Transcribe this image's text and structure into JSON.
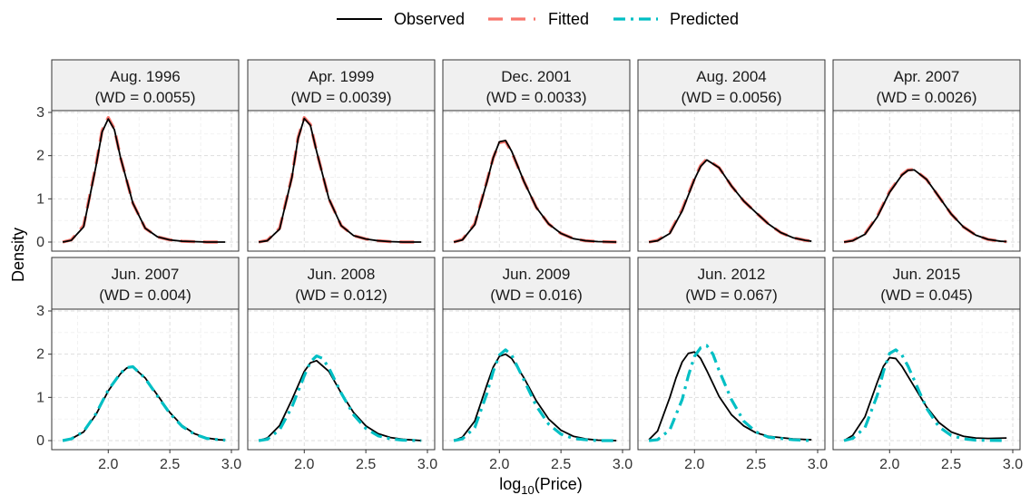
{
  "chart_data": {
    "type": "line",
    "xlabel": "log10(Price)",
    "xlabel_main": "log",
    "xlabel_sub": "10",
    "xlabel_rest": "(Price)",
    "ylabel": "Density",
    "xlim": [
      1.6,
      3.0
    ],
    "ylim": [
      0,
      3
    ],
    "x_ticks": [
      2.0,
      2.5,
      3.0
    ],
    "x_tick_labels": [
      "2.0",
      "2.5",
      "3.0"
    ],
    "y_ticks": [
      0,
      1,
      2,
      3
    ],
    "y_tick_labels": [
      "0",
      "1",
      "2",
      "3"
    ],
    "grid": true,
    "legend_position": "top",
    "legend": [
      {
        "key": "observed",
        "label": "Observed",
        "color": "#000000",
        "dash": "solid"
      },
      {
        "key": "fitted",
        "label": "Fitted",
        "color": "#F8766D",
        "dash": "dashed"
      },
      {
        "key": "predicted",
        "label": "Predicted",
        "color": "#00BFC4",
        "dash": "dotdash"
      }
    ],
    "panels": [
      {
        "title": "Aug. 1996",
        "wd": "(WD = 0.0055)",
        "compare": "fitted",
        "observed": {
          "x": [
            1.63,
            1.7,
            1.8,
            1.9,
            1.95,
            2.0,
            2.05,
            2.1,
            2.2,
            2.3,
            2.4,
            2.5,
            2.6,
            2.7,
            2.8,
            2.95
          ],
          "y": [
            0.0,
            0.04,
            0.35,
            1.75,
            2.55,
            2.85,
            2.6,
            1.95,
            0.9,
            0.32,
            0.12,
            0.05,
            0.02,
            0.01,
            0.0,
            0.0
          ]
        },
        "other": {
          "x": [
            1.63,
            1.7,
            1.8,
            1.9,
            1.95,
            2.0,
            2.05,
            2.1,
            2.2,
            2.3,
            2.4,
            2.5,
            2.6,
            2.7,
            2.8,
            2.95
          ],
          "y": [
            0.0,
            0.05,
            0.38,
            1.78,
            2.58,
            2.88,
            2.62,
            1.95,
            0.9,
            0.32,
            0.12,
            0.05,
            0.02,
            0.01,
            0.0,
            0.0
          ]
        }
      },
      {
        "title": "Apr. 1999",
        "wd": "(WD = 0.0039)",
        "compare": "fitted",
        "observed": {
          "x": [
            1.63,
            1.7,
            1.8,
            1.9,
            1.95,
            2.0,
            2.05,
            2.1,
            2.2,
            2.3,
            2.4,
            2.5,
            2.6,
            2.7,
            2.8,
            2.95
          ],
          "y": [
            0.0,
            0.03,
            0.3,
            1.5,
            2.4,
            2.86,
            2.7,
            2.1,
            1.0,
            0.38,
            0.15,
            0.07,
            0.03,
            0.01,
            0.0,
            0.0
          ]
        },
        "other": {
          "x": [
            1.63,
            1.7,
            1.8,
            1.9,
            1.95,
            2.0,
            2.05,
            2.1,
            2.2,
            2.3,
            2.4,
            2.5,
            2.6,
            2.7,
            2.8,
            2.95
          ],
          "y": [
            0.0,
            0.04,
            0.32,
            1.52,
            2.42,
            2.88,
            2.72,
            2.1,
            1.0,
            0.38,
            0.15,
            0.07,
            0.03,
            0.01,
            0.0,
            0.0
          ]
        }
      },
      {
        "title": "Dec. 2001",
        "wd": "(WD = 0.0033)",
        "compare": "fitted",
        "observed": {
          "x": [
            1.63,
            1.7,
            1.8,
            1.9,
            1.95,
            2.0,
            2.05,
            2.1,
            2.2,
            2.3,
            2.4,
            2.5,
            2.6,
            2.7,
            2.8,
            2.95
          ],
          "y": [
            0.0,
            0.05,
            0.4,
            1.4,
            1.95,
            2.32,
            2.35,
            2.1,
            1.4,
            0.8,
            0.42,
            0.2,
            0.08,
            0.03,
            0.01,
            0.0
          ]
        },
        "other": {
          "x": [
            1.63,
            1.7,
            1.8,
            1.9,
            1.95,
            2.0,
            2.05,
            2.1,
            2.2,
            2.3,
            2.4,
            2.5,
            2.6,
            2.7,
            2.8,
            2.95
          ],
          "y": [
            0.0,
            0.06,
            0.42,
            1.42,
            1.95,
            2.3,
            2.33,
            2.08,
            1.4,
            0.8,
            0.42,
            0.2,
            0.08,
            0.03,
            0.01,
            0.0
          ]
        }
      },
      {
        "title": "Aug. 2004",
        "wd": "(WD = 0.0056)",
        "compare": "fitted",
        "observed": {
          "x": [
            1.63,
            1.7,
            1.8,
            1.9,
            2.0,
            2.05,
            2.1,
            2.2,
            2.3,
            2.4,
            2.5,
            2.6,
            2.7,
            2.8,
            2.9,
            2.95
          ],
          "y": [
            0.0,
            0.03,
            0.2,
            0.72,
            1.45,
            1.75,
            1.9,
            1.72,
            1.3,
            0.95,
            0.68,
            0.42,
            0.22,
            0.1,
            0.04,
            0.02
          ]
        },
        "other": {
          "x": [
            1.63,
            1.7,
            1.8,
            1.9,
            2.0,
            2.05,
            2.1,
            2.2,
            2.3,
            2.4,
            2.5,
            2.6,
            2.7,
            2.8,
            2.9,
            2.95
          ],
          "y": [
            0.0,
            0.04,
            0.22,
            0.75,
            1.47,
            1.77,
            1.92,
            1.72,
            1.3,
            0.95,
            0.68,
            0.42,
            0.22,
            0.1,
            0.04,
            0.02
          ]
        }
      },
      {
        "title": "Apr. 2007",
        "wd": "(WD = 0.0026)",
        "compare": "fitted",
        "observed": {
          "x": [
            1.63,
            1.7,
            1.8,
            1.9,
            2.0,
            2.1,
            2.15,
            2.2,
            2.3,
            2.4,
            2.5,
            2.6,
            2.7,
            2.8,
            2.9,
            2.95
          ],
          "y": [
            0.0,
            0.03,
            0.18,
            0.58,
            1.15,
            1.55,
            1.66,
            1.67,
            1.45,
            1.05,
            0.65,
            0.35,
            0.16,
            0.06,
            0.02,
            0.01
          ]
        },
        "other": {
          "x": [
            1.63,
            1.7,
            1.8,
            1.9,
            2.0,
            2.1,
            2.15,
            2.2,
            2.3,
            2.4,
            2.5,
            2.6,
            2.7,
            2.8,
            2.9,
            2.95
          ],
          "y": [
            0.0,
            0.04,
            0.19,
            0.6,
            1.17,
            1.56,
            1.67,
            1.68,
            1.45,
            1.05,
            0.65,
            0.35,
            0.16,
            0.06,
            0.02,
            0.01
          ]
        }
      },
      {
        "title": "Jun. 2007",
        "wd": "(WD = 0.004)",
        "compare": "predicted",
        "observed": {
          "x": [
            1.63,
            1.7,
            1.8,
            1.9,
            2.0,
            2.1,
            2.15,
            2.2,
            2.3,
            2.4,
            2.5,
            2.6,
            2.7,
            2.8,
            2.9,
            2.95
          ],
          "y": [
            0.0,
            0.04,
            0.2,
            0.6,
            1.15,
            1.55,
            1.68,
            1.7,
            1.45,
            1.05,
            0.65,
            0.35,
            0.16,
            0.06,
            0.02,
            0.01
          ]
        },
        "other": {
          "x": [
            1.63,
            1.7,
            1.8,
            1.9,
            2.0,
            2.1,
            2.15,
            2.2,
            2.3,
            2.4,
            2.5,
            2.6,
            2.7,
            2.8,
            2.9,
            2.95
          ],
          "y": [
            0.0,
            0.04,
            0.21,
            0.62,
            1.17,
            1.56,
            1.69,
            1.71,
            1.44,
            1.03,
            0.63,
            0.33,
            0.15,
            0.05,
            0.02,
            0.01
          ]
        }
      },
      {
        "title": "Jun. 2008",
        "wd": "(WD = 0.012)",
        "compare": "predicted",
        "observed": {
          "x": [
            1.63,
            1.7,
            1.8,
            1.9,
            2.0,
            2.05,
            2.1,
            2.2,
            2.3,
            2.4,
            2.5,
            2.6,
            2.7,
            2.8,
            2.9,
            2.95
          ],
          "y": [
            0.0,
            0.06,
            0.35,
            0.95,
            1.6,
            1.8,
            1.85,
            1.6,
            1.1,
            0.65,
            0.34,
            0.16,
            0.07,
            0.03,
            0.01,
            0.0
          ]
        },
        "other": {
          "x": [
            1.63,
            1.7,
            1.8,
            1.9,
            2.0,
            2.05,
            2.1,
            2.15,
            2.2,
            2.3,
            2.4,
            2.5,
            2.6,
            2.7,
            2.8,
            2.95
          ],
          "y": [
            0.0,
            0.03,
            0.25,
            0.78,
            1.5,
            1.82,
            1.96,
            1.9,
            1.68,
            1.1,
            0.6,
            0.28,
            0.11,
            0.04,
            0.01,
            0.0
          ]
        }
      },
      {
        "title": "Jun. 2009",
        "wd": "(WD = 0.016)",
        "compare": "predicted",
        "observed": {
          "x": [
            1.63,
            1.7,
            1.8,
            1.9,
            1.95,
            2.0,
            2.05,
            2.1,
            2.2,
            2.3,
            2.4,
            2.5,
            2.6,
            2.7,
            2.8,
            2.95
          ],
          "y": [
            0.0,
            0.08,
            0.45,
            1.3,
            1.7,
            1.95,
            2.0,
            1.9,
            1.45,
            0.92,
            0.5,
            0.24,
            0.1,
            0.04,
            0.01,
            0.0
          ]
        },
        "other": {
          "x": [
            1.63,
            1.7,
            1.8,
            1.9,
            1.95,
            2.0,
            2.05,
            2.1,
            2.2,
            2.3,
            2.4,
            2.5,
            2.6,
            2.7,
            2.8,
            2.95
          ],
          "y": [
            0.0,
            0.04,
            0.3,
            1.1,
            1.6,
            1.98,
            2.1,
            1.98,
            1.4,
            0.8,
            0.38,
            0.15,
            0.05,
            0.02,
            0.0,
            0.0
          ]
        }
      },
      {
        "title": "Jun. 2012",
        "wd": "(WD = 0.067)",
        "compare": "predicted",
        "observed": {
          "x": [
            1.63,
            1.7,
            1.8,
            1.85,
            1.9,
            1.95,
            2.0,
            2.05,
            2.1,
            2.2,
            2.3,
            2.4,
            2.5,
            2.6,
            2.8,
            2.95
          ],
          "y": [
            0.02,
            0.22,
            1.0,
            1.45,
            1.82,
            2.02,
            2.05,
            1.9,
            1.62,
            1.02,
            0.6,
            0.34,
            0.18,
            0.1,
            0.04,
            0.02
          ]
        },
        "other": {
          "x": [
            1.63,
            1.7,
            1.8,
            1.9,
            1.95,
            2.0,
            2.05,
            2.1,
            2.15,
            2.2,
            2.3,
            2.4,
            2.5,
            2.6,
            2.8,
            2.95
          ],
          "y": [
            0.0,
            0.02,
            0.25,
            0.95,
            1.5,
            1.95,
            2.15,
            2.2,
            2.0,
            1.62,
            0.95,
            0.45,
            0.2,
            0.08,
            0.02,
            0.0
          ]
        }
      },
      {
        "title": "Jun. 2015",
        "wd": "(WD = 0.045)",
        "compare": "predicted",
        "observed": {
          "x": [
            1.63,
            1.7,
            1.8,
            1.9,
            1.95,
            2.0,
            2.05,
            2.1,
            2.2,
            2.3,
            2.4,
            2.5,
            2.6,
            2.7,
            2.8,
            2.95
          ],
          "y": [
            0.0,
            0.12,
            0.55,
            1.35,
            1.72,
            1.92,
            1.9,
            1.72,
            1.25,
            0.78,
            0.42,
            0.2,
            0.1,
            0.06,
            0.05,
            0.06
          ]
        },
        "other": {
          "x": [
            1.63,
            1.7,
            1.8,
            1.9,
            1.95,
            2.0,
            2.05,
            2.1,
            2.15,
            2.2,
            2.3,
            2.4,
            2.5,
            2.6,
            2.7,
            2.95
          ],
          "y": [
            0.0,
            0.05,
            0.3,
            1.05,
            1.6,
            2.02,
            2.1,
            1.98,
            1.72,
            1.4,
            0.75,
            0.32,
            0.12,
            0.04,
            0.01,
            0.0
          ]
        }
      }
    ]
  }
}
